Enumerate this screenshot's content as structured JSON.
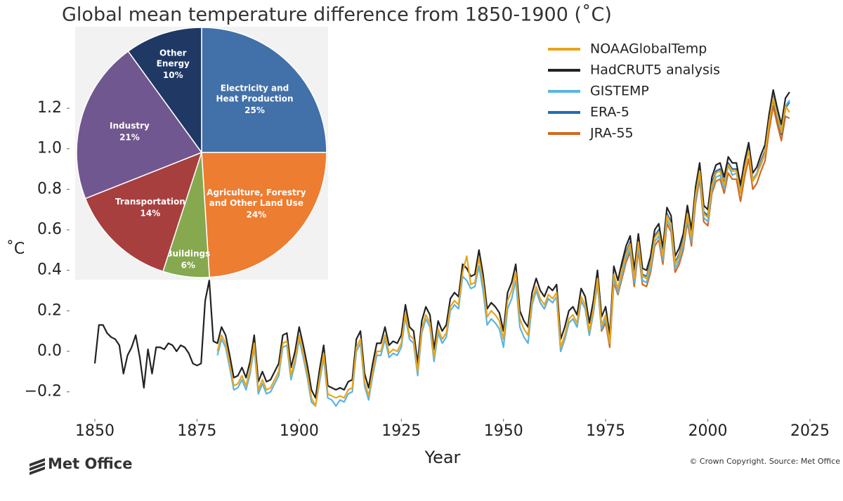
{
  "chart_data": [
    {
      "type": "line",
      "title": "Global mean temperature difference from 1850-1900 (˚C)",
      "x_label": "Year",
      "y_label": "˚C",
      "xlim": [
        1845,
        2030
      ],
      "ylim": [
        -0.3,
        1.4
      ],
      "xticks": [
        1850,
        1875,
        1900,
        1925,
        1950,
        1975,
        2000,
        2025
      ],
      "yticks": [
        {
          "value": -0.2,
          "label": "−0.2"
        },
        {
          "value": 0,
          "label": "0.0"
        },
        0.2,
        0.4,
        0.6,
        0.8,
        {
          "value": 1,
          "label": "1.0"
        },
        1.2
      ],
      "legend": "upper right",
      "x": [
        1850,
        1851,
        1852,
        1853,
        1854,
        1855,
        1856,
        1857,
        1858,
        1859,
        1860,
        1861,
        1862,
        1863,
        1864,
        1865,
        1866,
        1867,
        1868,
        1869,
        1870,
        1871,
        1872,
        1873,
        1874,
        1875,
        1876,
        1877,
        1878,
        1879,
        1880,
        1881,
        1882,
        1883,
        1884,
        1885,
        1886,
        1887,
        1888,
        1889,
        1890,
        1891,
        1892,
        1893,
        1894,
        1895,
        1896,
        1897,
        1898,
        1899,
        1900,
        1901,
        1902,
        1903,
        1904,
        1905,
        1906,
        1907,
        1908,
        1909,
        1910,
        1911,
        1912,
        1913,
        1914,
        1915,
        1916,
        1917,
        1918,
        1919,
        1920,
        1921,
        1922,
        1923,
        1924,
        1925,
        1926,
        1927,
        1928,
        1929,
        1930,
        1931,
        1932,
        1933,
        1934,
        1935,
        1936,
        1937,
        1938,
        1939,
        1940,
        1941,
        1942,
        1943,
        1944,
        1945,
        1946,
        1947,
        1948,
        1949,
        1950,
        1951,
        1952,
        1953,
        1954,
        1955,
        1956,
        1957,
        1958,
        1959,
        1960,
        1961,
        1962,
        1963,
        1964,
        1965,
        1966,
        1967,
        1968,
        1969,
        1970,
        1971,
        1972,
        1973,
        1974,
        1975,
        1976,
        1977,
        1978,
        1979,
        1980,
        1981,
        1982,
        1983,
        1984,
        1985,
        1986,
        1987,
        1988,
        1989,
        1990,
        1991,
        1992,
        1993,
        1994,
        1995,
        1996,
        1997,
        1998,
        1999,
        2000,
        2001,
        2002,
        2003,
        2004,
        2005,
        2006,
        2007,
        2008,
        2009,
        2010,
        2011,
        2012,
        2013,
        2014,
        2015,
        2016,
        2017,
        2018,
        2019,
        2020
      ],
      "series": [
        {
          "name": "NOAAGlobalTemp",
          "color": "#e6a51e",
          "values": [
            null,
            null,
            null,
            null,
            null,
            null,
            null,
            null,
            null,
            null,
            null,
            null,
            null,
            null,
            null,
            null,
            null,
            null,
            null,
            null,
            null,
            null,
            null,
            null,
            null,
            null,
            null,
            null,
            null,
            null,
            0.0,
            0.08,
            0.04,
            -0.06,
            -0.17,
            -0.16,
            -0.12,
            -0.17,
            -0.09,
            0.04,
            -0.19,
            -0.14,
            -0.19,
            -0.18,
            -0.14,
            -0.1,
            0.04,
            0.05,
            -0.12,
            -0.04,
            0.08,
            -0.01,
            -0.11,
            -0.23,
            -0.27,
            -0.13,
            -0.01,
            -0.21,
            -0.22,
            -0.23,
            -0.22,
            -0.23,
            -0.19,
            -0.18,
            0.02,
            0.06,
            -0.15,
            -0.22,
            -0.1,
            0.0,
            0.0,
            0.08,
            -0.01,
            0.01,
            0.0,
            0.04,
            0.19,
            0.08,
            0.06,
            -0.1,
            0.11,
            0.18,
            0.14,
            -0.03,
            0.11,
            0.06,
            0.09,
            0.22,
            0.25,
            0.23,
            0.39,
            0.47,
            0.33,
            0.34,
            0.46,
            0.34,
            0.17,
            0.2,
            0.18,
            0.15,
            0.06,
            0.25,
            0.3,
            0.39,
            0.16,
            0.11,
            0.08,
            0.25,
            0.32,
            0.26,
            0.23,
            0.28,
            0.26,
            0.29,
            0.02,
            0.08,
            0.16,
            0.18,
            0.14,
            0.27,
            0.23,
            0.1,
            0.21,
            0.36,
            0.13,
            0.18,
            0.04,
            0.38,
            0.31,
            0.4,
            0.48,
            0.53,
            0.36,
            0.54,
            0.37,
            0.36,
            0.43,
            0.56,
            0.59,
            0.47,
            0.67,
            0.63,
            0.43,
            0.47,
            0.54,
            0.68,
            0.56,
            0.77,
            0.89,
            0.68,
            0.66,
            0.82,
            0.88,
            0.89,
            0.82,
            0.92,
            0.89,
            0.89,
            0.78,
            0.9,
            0.99,
            0.84,
            0.87,
            0.93,
            0.98,
            1.13,
            1.25,
            1.16,
            1.08,
            1.21,
            1.18
          ]
        },
        {
          "name": "HadCRUT5 analysis",
          "color": "#222222",
          "values": [
            -0.06,
            0.13,
            0.13,
            0.09,
            0.07,
            0.06,
            0.03,
            -0.11,
            -0.02,
            0.02,
            0.08,
            -0.03,
            -0.18,
            0.01,
            -0.11,
            0.02,
            0.02,
            0.01,
            0.04,
            0.03,
            0.0,
            0.03,
            0.02,
            -0.01,
            -0.06,
            -0.07,
            -0.06,
            0.25,
            0.35,
            0.05,
            0.04,
            0.12,
            0.08,
            -0.02,
            -0.13,
            -0.12,
            -0.08,
            -0.13,
            -0.05,
            0.08,
            -0.15,
            -0.1,
            -0.15,
            -0.14,
            -0.1,
            -0.06,
            0.08,
            0.09,
            -0.08,
            0.0,
            0.12,
            0.03,
            -0.07,
            -0.19,
            -0.23,
            -0.09,
            0.03,
            -0.17,
            -0.18,
            -0.19,
            -0.18,
            -0.19,
            -0.15,
            -0.14,
            0.06,
            0.1,
            -0.11,
            -0.18,
            -0.06,
            0.04,
            0.04,
            0.12,
            0.03,
            0.05,
            0.04,
            0.08,
            0.23,
            0.12,
            0.1,
            -0.06,
            0.15,
            0.22,
            0.18,
            0.01,
            0.15,
            0.1,
            0.13,
            0.26,
            0.29,
            0.27,
            0.43,
            0.41,
            0.37,
            0.38,
            0.5,
            0.38,
            0.21,
            0.24,
            0.22,
            0.19,
            0.1,
            0.29,
            0.34,
            0.43,
            0.2,
            0.15,
            0.12,
            0.29,
            0.36,
            0.3,
            0.27,
            0.32,
            0.3,
            0.33,
            0.06,
            0.12,
            0.2,
            0.22,
            0.18,
            0.31,
            0.27,
            0.14,
            0.25,
            0.4,
            0.17,
            0.22,
            0.08,
            0.42,
            0.35,
            0.44,
            0.52,
            0.57,
            0.4,
            0.58,
            0.41,
            0.4,
            0.47,
            0.6,
            0.63,
            0.51,
            0.71,
            0.67,
            0.47,
            0.51,
            0.58,
            0.72,
            0.6,
            0.81,
            0.93,
            0.72,
            0.7,
            0.86,
            0.92,
            0.93,
            0.86,
            0.96,
            0.93,
            0.93,
            0.82,
            0.94,
            1.03,
            0.88,
            0.91,
            0.97,
            1.02,
            1.17,
            1.29,
            1.2,
            1.12,
            1.25,
            1.28
          ]
        },
        {
          "name": "GISTEMP",
          "color": "#5ab4e5",
          "values": [
            null,
            null,
            null,
            null,
            null,
            null,
            null,
            null,
            null,
            null,
            null,
            null,
            null,
            null,
            null,
            null,
            null,
            null,
            null,
            null,
            null,
            null,
            null,
            null,
            null,
            null,
            null,
            null,
            null,
            null,
            -0.02,
            0.06,
            0.02,
            -0.08,
            -0.19,
            -0.18,
            -0.14,
            -0.19,
            -0.11,
            0.02,
            -0.21,
            -0.16,
            -0.21,
            -0.2,
            -0.16,
            -0.12,
            0.02,
            0.03,
            -0.14,
            -0.06,
            0.06,
            -0.03,
            -0.13,
            -0.25,
            -0.27,
            -0.15,
            -0.03,
            -0.23,
            -0.24,
            -0.27,
            -0.24,
            -0.25,
            -0.21,
            -0.2,
            0.0,
            0.04,
            -0.17,
            -0.24,
            -0.12,
            -0.02,
            -0.02,
            0.06,
            -0.03,
            -0.01,
            -0.02,
            0.02,
            0.17,
            0.06,
            0.04,
            -0.12,
            0.09,
            0.16,
            0.12,
            -0.05,
            0.09,
            0.04,
            0.07,
            0.2,
            0.23,
            0.21,
            0.37,
            0.35,
            0.31,
            0.32,
            0.42,
            0.3,
            0.13,
            0.16,
            0.14,
            0.11,
            0.02,
            0.21,
            0.26,
            0.35,
            0.12,
            0.07,
            0.04,
            0.23,
            0.3,
            0.24,
            0.21,
            0.26,
            0.24,
            0.27,
            0.0,
            0.06,
            0.14,
            0.16,
            0.12,
            0.25,
            0.21,
            0.08,
            0.19,
            0.34,
            0.11,
            0.16,
            0.04,
            0.36,
            0.29,
            0.38,
            0.46,
            0.51,
            0.34,
            0.52,
            0.35,
            0.34,
            0.41,
            0.54,
            0.57,
            0.45,
            0.65,
            0.61,
            0.41,
            0.45,
            0.52,
            0.66,
            0.54,
            0.75,
            0.87,
            0.66,
            0.64,
            0.8,
            0.86,
            0.87,
            0.8,
            0.92,
            0.87,
            0.88,
            0.78,
            0.9,
            1.0,
            0.85,
            0.88,
            0.92,
            0.98,
            1.14,
            1.26,
            1.17,
            1.09,
            1.21,
            1.24
          ]
        },
        {
          "name": "ERA-5",
          "color": "#1f6fb0",
          "values": [
            null,
            null,
            null,
            null,
            null,
            null,
            null,
            null,
            null,
            null,
            null,
            null,
            null,
            null,
            null,
            null,
            null,
            null,
            null,
            null,
            null,
            null,
            null,
            null,
            null,
            null,
            null,
            null,
            null,
            null,
            null,
            null,
            null,
            null,
            null,
            null,
            null,
            null,
            null,
            null,
            null,
            null,
            null,
            null,
            null,
            null,
            null,
            null,
            null,
            null,
            null,
            null,
            null,
            null,
            null,
            null,
            null,
            null,
            null,
            null,
            null,
            null,
            null,
            null,
            null,
            null,
            null,
            null,
            null,
            null,
            null,
            null,
            null,
            null,
            null,
            null,
            null,
            null,
            null,
            null,
            null,
            null,
            null,
            null,
            null,
            null,
            null,
            null,
            null,
            null,
            null,
            null,
            null,
            null,
            null,
            null,
            null,
            null,
            null,
            null,
            null,
            null,
            null,
            null,
            null,
            null,
            null,
            null,
            null,
            null,
            null,
            null,
            null,
            null,
            null,
            null,
            null,
            null,
            null,
            null,
            null,
            null,
            null,
            null,
            null,
            null,
            null,
            null,
            null,
            0.41,
            0.49,
            0.54,
            0.37,
            0.55,
            0.38,
            0.37,
            0.44,
            0.57,
            0.6,
            0.48,
            0.68,
            0.64,
            0.44,
            0.48,
            0.55,
            0.69,
            0.57,
            0.78,
            0.9,
            0.69,
            0.67,
            0.83,
            0.89,
            0.9,
            0.83,
            0.93,
            0.9,
            0.9,
            0.79,
            0.91,
            1.0,
            0.85,
            0.88,
            0.94,
            0.99,
            1.14,
            1.24,
            1.15,
            1.07,
            1.2,
            1.23
          ]
        },
        {
          "name": "JRA-55",
          "color": "#d2691e",
          "values": [
            null,
            null,
            null,
            null,
            null,
            null,
            null,
            null,
            null,
            null,
            null,
            null,
            null,
            null,
            null,
            null,
            null,
            null,
            null,
            null,
            null,
            null,
            null,
            null,
            null,
            null,
            null,
            null,
            null,
            null,
            null,
            null,
            null,
            null,
            null,
            null,
            null,
            null,
            null,
            null,
            null,
            null,
            null,
            null,
            null,
            null,
            null,
            null,
            null,
            null,
            null,
            null,
            null,
            null,
            null,
            null,
            null,
            null,
            null,
            null,
            null,
            null,
            null,
            null,
            null,
            null,
            null,
            null,
            null,
            null,
            null,
            null,
            null,
            null,
            null,
            null,
            null,
            null,
            null,
            null,
            null,
            null,
            null,
            null,
            null,
            null,
            null,
            null,
            null,
            null,
            null,
            null,
            null,
            null,
            null,
            null,
            null,
            null,
            null,
            null,
            null,
            null,
            null,
            null,
            null,
            null,
            null,
            null,
            0.3,
            0.24,
            0.21,
            0.26,
            0.24,
            0.27,
            0.0,
            0.06,
            0.14,
            0.16,
            0.12,
            0.25,
            0.21,
            0.08,
            0.19,
            0.34,
            0.1,
            0.14,
            0.02,
            0.34,
            0.28,
            0.36,
            0.44,
            0.49,
            0.32,
            0.5,
            0.33,
            0.32,
            0.39,
            0.52,
            0.55,
            0.43,
            0.63,
            0.59,
            0.39,
            0.43,
            0.5,
            0.64,
            0.52,
            0.73,
            0.85,
            0.64,
            0.62,
            0.78,
            0.84,
            0.85,
            0.78,
            0.88,
            0.85,
            0.85,
            0.74,
            0.86,
            0.95,
            0.8,
            0.83,
            0.89,
            0.94,
            1.09,
            1.21,
            1.12,
            1.04,
            1.16,
            1.15
          ]
        }
      ]
    },
    {
      "type": "pie",
      "categories": [
        "Electricity and\nHeat Production",
        "Agriculture, Forestry\nand Other Land Use",
        "Buildings",
        "Transportation",
        "Industry",
        "Other\nEnergy"
      ],
      "values": [
        25,
        24,
        6,
        14,
        21,
        10
      ],
      "value_labels": [
        "25%",
        "24%",
        "6%",
        "14%",
        "21%",
        "10%"
      ],
      "colors": [
        "#4270a8",
        "#ed7d31",
        "#86a84f",
        "#a83f3f",
        "#71578f",
        "#1f3864"
      ]
    }
  ],
  "footer": {
    "logo": "Met Office",
    "credit": "© Crown Copyright. Source: Met Office"
  }
}
